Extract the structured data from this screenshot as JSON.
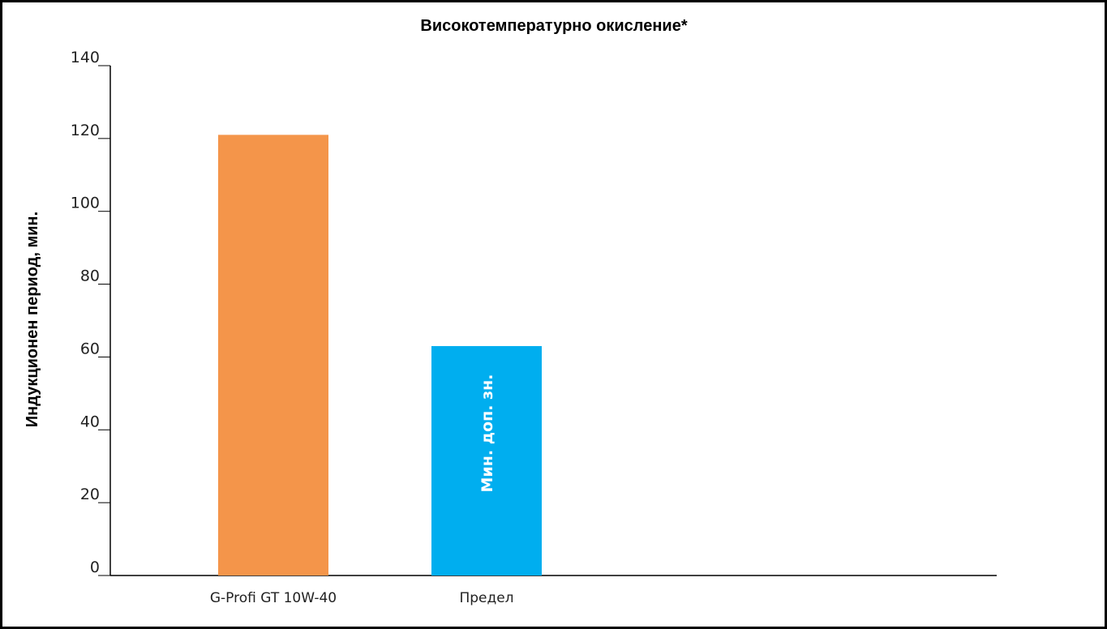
{
  "chart_data": {
    "type": "bar",
    "title": "Високотемпературно окисление*",
    "xlabel": "",
    "ylabel": "Индукционен период, мин.",
    "ylim": [
      0,
      140
    ],
    "yticks": [
      0,
      20,
      40,
      60,
      80,
      100,
      120,
      140
    ],
    "categories": [
      "G-Profi GT 10W-40",
      "Предел"
    ],
    "values": [
      121,
      63
    ],
    "bar_colors": [
      "#f4954a",
      "#00aeef"
    ],
    "bar_labels": [
      "",
      "Мин. доп. зн."
    ],
    "grid": false,
    "legend": "none"
  }
}
